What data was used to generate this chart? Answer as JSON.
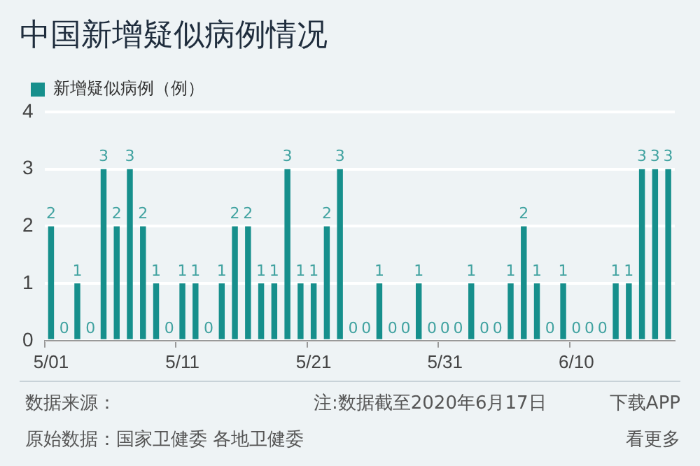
{
  "chart_data": {
    "type": "bar",
    "title": "中国新增疑似病例情况",
    "categories": [
      "5/01",
      null,
      null,
      null,
      null,
      null,
      null,
      null,
      null,
      null,
      "5/11",
      null,
      null,
      null,
      null,
      null,
      null,
      null,
      null,
      null,
      "5/21",
      null,
      null,
      null,
      null,
      null,
      null,
      null,
      null,
      null,
      "5/31",
      null,
      null,
      null,
      null,
      null,
      null,
      null,
      null,
      null,
      "6/10",
      null,
      null,
      null,
      null,
      null,
      null,
      null
    ],
    "series": [
      {
        "name": "新增疑似病例（例）",
        "color": "#168f8c",
        "values": [
          2,
          0,
          1,
          0,
          3,
          2,
          3,
          2,
          1,
          0,
          1,
          1,
          0,
          1,
          2,
          2,
          1,
          1,
          3,
          1,
          1,
          2,
          3,
          0,
          0,
          1,
          0,
          0,
          1,
          0,
          0,
          0,
          1,
          0,
          0,
          1,
          2,
          1,
          0,
          1,
          0,
          0,
          0,
          1,
          1,
          3,
          3,
          3
        ]
      }
    ],
    "ylim": [
      0,
      4
    ],
    "yticks": [
      0,
      1,
      2,
      3,
      4
    ],
    "grid": "y",
    "legend": "top left",
    "data_labels": true,
    "annotations": [
      "数据来源：",
      "注:数据截至2020年6月17日",
      "下载APP",
      "原始数据：国家卫健委 各地卫健委",
      "看更多"
    ]
  }
}
